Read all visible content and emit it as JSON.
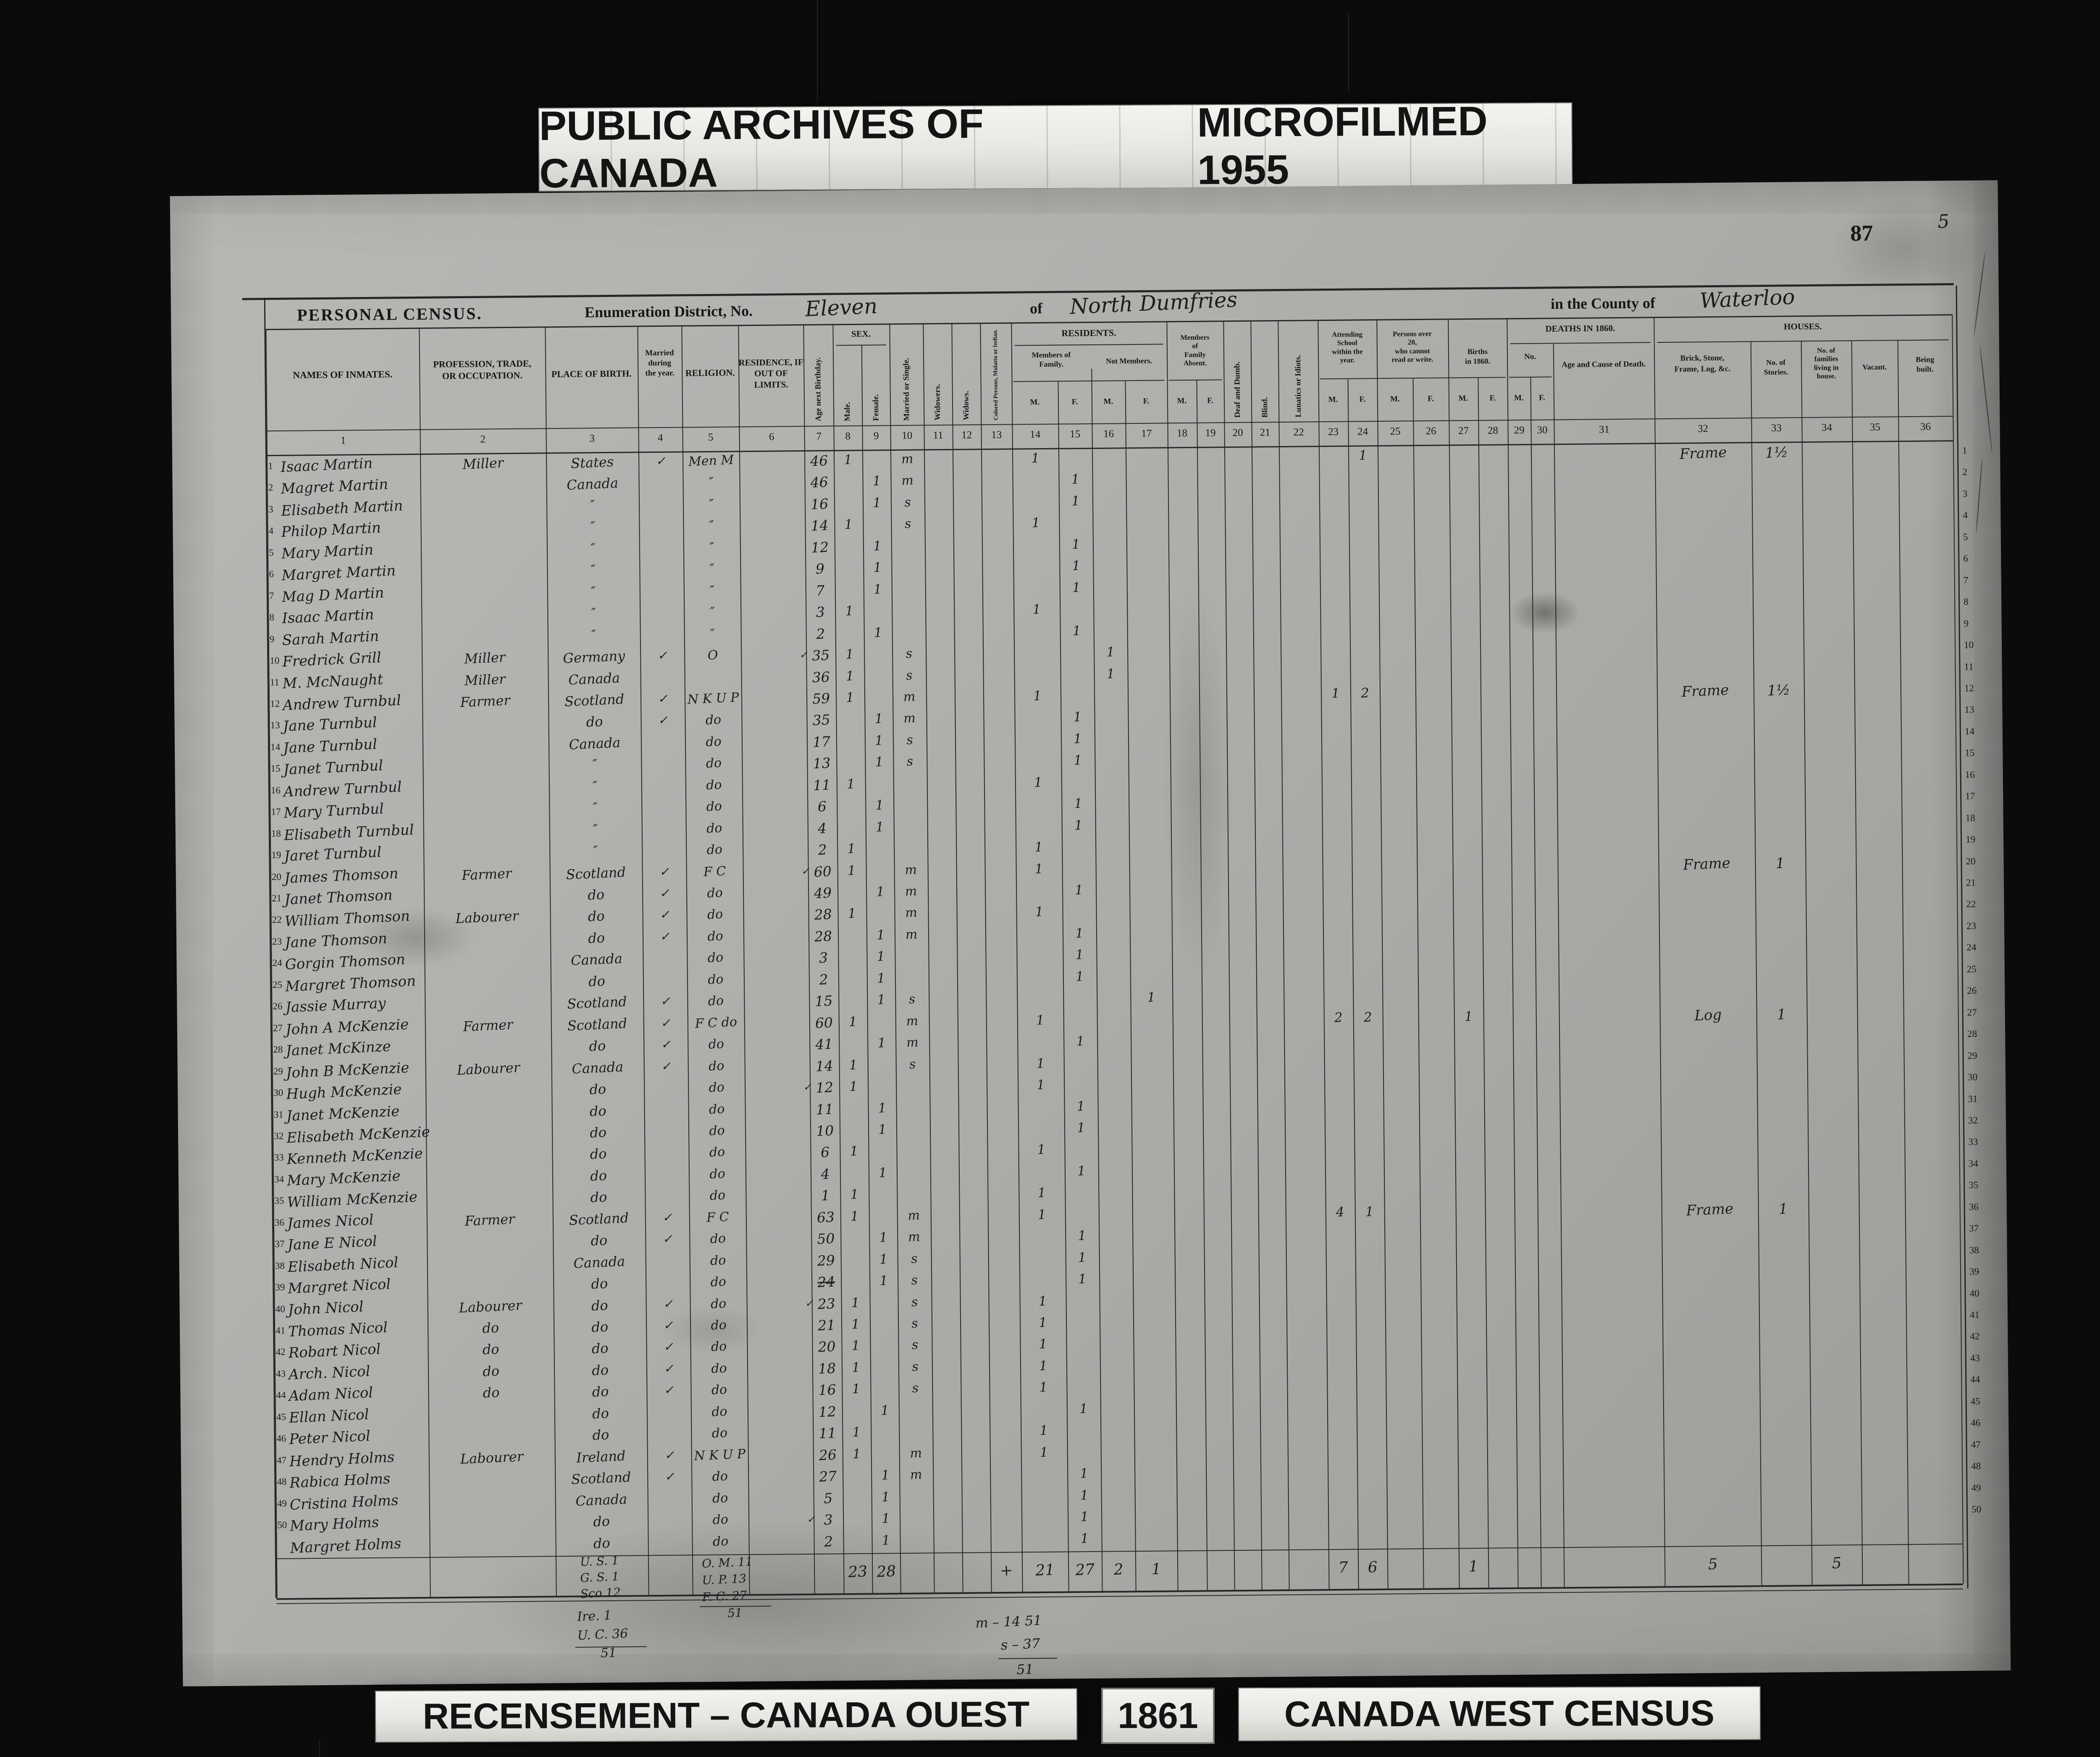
{
  "banners": {
    "top_left": "PUBLIC ARCHIVES OF CANADA",
    "top_right": "MICROFILMED 1955",
    "bottom_left": "RECENSEMENT – CANADA OUEST",
    "bottom_year": "1861",
    "bottom_right": "CANADA WEST CENSUS"
  },
  "page": {
    "number": "87",
    "margin_numeral": "5"
  },
  "form": {
    "title": "PERSONAL CENSUS.",
    "district_label": "Enumeration District, No.",
    "district_value": "Eleven",
    "of_label": "of",
    "township_value": "North Dumfries",
    "county_label": "in the County of",
    "county_value": "Waterloo"
  },
  "header": {
    "col1": "NAMES OF INMATES.",
    "col2": "PROFESSION, TRADE,|OR OCCUPATION.",
    "col3": "PLACE OF BIRTH.",
    "col4": "Married|during|the year.",
    "col5": "RELIGION.",
    "col6": "RESIDENCE, IF|OUT OF LIMITS.",
    "col7": "Age next Birthday.",
    "col8": "Male.",
    "col9": "Female.",
    "col10": "Married or Single.",
    "col11": "Widowers.",
    "col12": "Widows.",
    "col13": "Colored Persons, Mulatto or Indian.",
    "sex_group": "SEX.",
    "residents_group": "RESIDENTS.",
    "members_family": "Members of|Family.",
    "not_members": "Not Members.",
    "members_absent": "Members|of|Family|Absent.",
    "col20": "Deaf and Dumb.",
    "col21": "Blind.",
    "col22": "Lunatics or Idiots.",
    "attending_school": "Attending|School|within the|year.",
    "over20": "Persons over|20,|who cannot|read or write.",
    "births": "Births|in 1860.",
    "deaths_group": "DEATHS IN 1860.",
    "no_label": "No.",
    "col31": "Age and Cause of Death.",
    "houses_group": "HOUSES.",
    "col32": "Brick, Stone,|Frame, Log, &c.",
    "col33": "No. of|Stories.",
    "col34": "No. of|families|living in|house.",
    "col35": "Vacant.",
    "col36": "Being|built.",
    "m": "M.",
    "f": "F."
  },
  "rows": [
    {
      "n": "1",
      "name": "Isaac Martin",
      "prof": "Miller",
      "birth": "States",
      "chk": 1,
      "rel": "Men M",
      "age": "46",
      "sm": 1,
      "ms": "m",
      "r14": 1,
      "s24": "1",
      "h32": "Frame",
      "h33": "1½"
    },
    {
      "n": "2",
      "name": "Magret Martin",
      "birth": "Canada",
      "rel": "″",
      "age": "46",
      "sf": 1,
      "ms": "m",
      "r15": 1
    },
    {
      "n": "3",
      "name": "Elisabeth Martin",
      "birth": "″",
      "rel": "″",
      "age": "16",
      "sf": 1,
      "ms": "s",
      "r15": 1
    },
    {
      "n": "4",
      "name": "Philop Martin",
      "birth": "″",
      "rel": "″",
      "age": "14",
      "sm": 1,
      "ms": "s",
      "r14": 1
    },
    {
      "n": "5",
      "name": "Mary Martin",
      "birth": "″",
      "rel": "″",
      "age": "12",
      "sf": 1,
      "r15": 1
    },
    {
      "n": "6",
      "name": "Margret Martin",
      "birth": "″",
      "rel": "″",
      "age": "9",
      "sf": 1,
      "r15": 1
    },
    {
      "n": "7",
      "name": "Mag D Martin",
      "birth": "″",
      "rel": "″",
      "age": "7",
      "sf": 1,
      "r15": 1
    },
    {
      "n": "8",
      "name": "Isaac Martin",
      "birth": "″",
      "rel": "″",
      "age": "3",
      "sm": 1,
      "r14": 1
    },
    {
      "n": "9",
      "name": "Sarah Martin",
      "birth": "″",
      "rel": "″",
      "age": "2",
      "sf": 1,
      "r15": 1
    },
    {
      "n": "10",
      "name": "Fredrick Grill",
      "prof": "Miller",
      "birth": "Germany",
      "chk": 1,
      "rel": "O",
      "age": "35",
      "ack": 1,
      "sm": 1,
      "ms": "s",
      "r16": 1
    },
    {
      "n": "11",
      "name": "M. McNaught",
      "prof": "Miller",
      "birth": "Canada",
      "age": "36",
      "sm": 1,
      "ms": "s",
      "r16": 1
    },
    {
      "n": "12",
      "name": "Andrew Turnbul",
      "prof": "Farmer",
      "birth": "Scotland",
      "chk": 1,
      "rel": "N K U P",
      "age": "59",
      "sm": 1,
      "ms": "m",
      "r14": 1,
      "s23": "1",
      "s24": "2",
      "h32": "Frame",
      "h33": "1½"
    },
    {
      "n": "13",
      "name": "Jane Turnbul",
      "birth": "do",
      "chk": 1,
      "rel": "do",
      "age": "35",
      "sf": 1,
      "ms": "m",
      "r15": 1
    },
    {
      "n": "14",
      "name": "Jane Turnbul",
      "birth": "Canada",
      "rel": "do",
      "age": "17",
      "sf": 1,
      "ms": "s",
      "r15": 1
    },
    {
      "n": "15",
      "name": "Janet Turnbul",
      "birth": "″",
      "rel": "do",
      "age": "13",
      "sf": 1,
      "ms": "s",
      "r15": 1
    },
    {
      "n": "16",
      "name": "Andrew Turnbul",
      "birth": "″",
      "rel": "do",
      "age": "11",
      "sm": 1,
      "r14": 1
    },
    {
      "n": "17",
      "name": "Mary Turnbul",
      "birth": "″",
      "rel": "do",
      "age": "6",
      "sf": 1,
      "r15": 1
    },
    {
      "n": "18",
      "name": "Elisabeth Turnbul",
      "birth": "″",
      "rel": "do",
      "age": "4",
      "sf": 1,
      "r15": 1
    },
    {
      "n": "19",
      "name": "Jaret Turnbul",
      "birth": "″",
      "rel": "do",
      "age": "2",
      "sm": 1,
      "r14": 1
    },
    {
      "n": "20",
      "name": "James Thomson",
      "prof": "Farmer",
      "birth": "Scotland",
      "chk": 1,
      "rel": "F C",
      "age": "60",
      "ack": 1,
      "sm": 1,
      "ms": "m",
      "r14": 1,
      "h32": "Frame",
      "h33": "1"
    },
    {
      "n": "21",
      "name": "Janet Thomson",
      "birth": "do",
      "chk": 1,
      "rel": "do",
      "age": "49",
      "sf": 1,
      "ms": "m",
      "r15": 1
    },
    {
      "n": "22",
      "name": "William Thomson",
      "prof": "Labourer",
      "birth": "do",
      "chk": 1,
      "rel": "do",
      "age": "28",
      "sm": 1,
      "ms": "m",
      "r14": 1
    },
    {
      "n": "23",
      "name": "Jane Thomson",
      "birth": "do",
      "chk": 1,
      "rel": "do",
      "age": "28",
      "sf": 1,
      "ms": "m",
      "r15": 1
    },
    {
      "n": "24",
      "name": "Gorgin Thomson",
      "birth": "Canada",
      "rel": "do",
      "age": "3",
      "sf": 1,
      "r15": 1
    },
    {
      "n": "25",
      "name": "Margret Thomson",
      "birth": "do",
      "rel": "do",
      "age": "2",
      "sf": 1,
      "r15": 1
    },
    {
      "n": "26",
      "name": "Jassie Murray",
      "birth": "Scotland",
      "chk": 1,
      "rel": "do",
      "age": "15",
      "sf": 1,
      "ms": "s",
      "r17": 1
    },
    {
      "n": "27",
      "name": "John A McKenzie",
      "prof": "Farmer",
      "birth": "Scotland",
      "chk": 1,
      "rel": "F C do",
      "age": "60",
      "sm": 1,
      "ms": "m",
      "r14": 1,
      "s23": "2",
      "s24": "2",
      "b27": "1",
      "h32": "Log",
      "h33": "1"
    },
    {
      "n": "28",
      "name": "Janet McKinze",
      "birth": "do",
      "chk": 1,
      "rel": "do",
      "age": "41",
      "sf": 1,
      "ms": "m",
      "r15": 1
    },
    {
      "n": "29",
      "name": "John B McKenzie",
      "prof": "Labourer",
      "birth": "Canada",
      "chk": 1,
      "rel": "do",
      "age": "14",
      "sm": 1,
      "ms": "s",
      "r14": 1
    },
    {
      "n": "30",
      "name": "Hugh McKenzie",
      "birth": "do",
      "rel": "do",
      "age": "12",
      "ack": 1,
      "sm": 1,
      "r14": 1
    },
    {
      "n": "31",
      "name": "Janet McKenzie",
      "birth": "do",
      "rel": "do",
      "age": "11",
      "sf": 1,
      "r15": 1
    },
    {
      "n": "32",
      "name": "Elisabeth McKenzie",
      "birth": "do",
      "rel": "do",
      "age": "10",
      "sf": 1,
      "r15": 1
    },
    {
      "n": "33",
      "name": "Kenneth McKenzie",
      "birth": "do",
      "rel": "do",
      "age": "6",
      "sm": 1,
      "r14": 1
    },
    {
      "n": "34",
      "name": "Mary McKenzie",
      "birth": "do",
      "rel": "do",
      "age": "4",
      "sf": 1,
      "r15": 1
    },
    {
      "n": "35",
      "name": "William McKenzie",
      "birth": "do",
      "rel": "do",
      "age": "1",
      "sm": 1,
      "r14": 1
    },
    {
      "n": "36",
      "name": "James Nicol",
      "prof": "Farmer",
      "birth": "Scotland",
      "chk": 1,
      "rel": "F C",
      "age": "63",
      "sm": 1,
      "ms": "m",
      "r14": 1,
      "s23": "4",
      "s24": "1",
      "h32": "Frame",
      "h33": "1"
    },
    {
      "n": "37",
      "name": "Jane E Nicol",
      "birth": "do",
      "chk": 1,
      "rel": "do",
      "age": "50",
      "sf": 1,
      "ms": "m",
      "r15": 1
    },
    {
      "n": "38",
      "name": "Elisabeth Nicol",
      "birth": "Canada",
      "rel": "do",
      "age": "29",
      "sf": 1,
      "ms": "s",
      "r15": 1
    },
    {
      "n": "39",
      "name": "Margret Nicol",
      "birth": "do",
      "rel": "do",
      "age": "24",
      "strike": 1,
      "sf": 1,
      "ms": "s",
      "r15": 1
    },
    {
      "n": "40",
      "name": "John Nicol",
      "prof": "Labourer",
      "birth": "do",
      "chk": 1,
      "rel": "do",
      "age": "23",
      "ack": 1,
      "sm": 1,
      "ms": "s",
      "r14": 1
    },
    {
      "n": "41",
      "name": "Thomas Nicol",
      "prof": "do",
      "birth": "do",
      "chk": 1,
      "rel": "do",
      "age": "21",
      "sm": 1,
      "ms": "s",
      "r14": 1
    },
    {
      "n": "42",
      "name": "Robart Nicol",
      "prof": "do",
      "birth": "do",
      "chk": 1,
      "rel": "do",
      "age": "20",
      "sm": 1,
      "ms": "s",
      "r14": 1
    },
    {
      "n": "43",
      "name": "Arch. Nicol",
      "prof": "do",
      "birth": "do",
      "chk": 1,
      "rel": "do",
      "age": "18",
      "sm": 1,
      "ms": "s",
      "r14": 1
    },
    {
      "n": "44",
      "name": "Adam Nicol",
      "prof": "do",
      "birth": "do",
      "chk": 1,
      "rel": "do",
      "age": "16",
      "sm": 1,
      "ms": "s",
      "r14": 1
    },
    {
      "n": "45",
      "name": "Ellan Nicol",
      "birth": "do",
      "rel": "do",
      "age": "12",
      "sf": 1,
      "r15": 1
    },
    {
      "n": "46",
      "name": "Peter Nicol",
      "birth": "do",
      "rel": "do",
      "age": "11",
      "sm": 1,
      "r14": 1
    },
    {
      "n": "47",
      "name": "Hendry Holms",
      "prof": "Labourer",
      "birth": "Ireland",
      "chk": 1,
      "rel": "N K U P",
      "age": "26",
      "sm": 1,
      "ms": "m",
      "r14": 1
    },
    {
      "n": "48",
      "name": "Rabica Holms",
      "birth": "Scotland",
      "chk": 1,
      "rel": "do",
      "age": "27",
      "sf": 1,
      "ms": "m",
      "r15": 1
    },
    {
      "n": "49",
      "name": "Cristina Holms",
      "birth": "Canada",
      "rel": "do",
      "age": "5",
      "sf": 1,
      "r15": 1
    },
    {
      "n": "50",
      "name": "Mary Holms",
      "birth": "do",
      "rel": "do",
      "age": "3",
      "ack": 1,
      "sf": 1,
      "r15": 1
    },
    {
      "n": "",
      "name": "Margret Holms",
      "birth": "do",
      "rel": "do",
      "age": "2",
      "sf": 1,
      "r15": 1
    }
  ],
  "totals": {
    "c8": "23",
    "c9": "28",
    "c13": "+",
    "c14": "21",
    "c15": "27",
    "c16": "2",
    "c17": "1",
    "c23": "7",
    "c24": "6",
    "c27": "1",
    "c32": "5",
    "c34": "5"
  },
  "summaries": {
    "birth_upper": [
      "U. S.  1",
      "G. S.  1",
      "Sco  12"
    ],
    "birth_lower": [
      "Ire.  1",
      "U. C.  36",
      "51"
    ],
    "religion": [
      "O. M.  11",
      "U. P.  13",
      "F. C.  27",
      "51"
    ],
    "marital": [
      "m –  14   51",
      "s –  37",
      "51"
    ]
  }
}
